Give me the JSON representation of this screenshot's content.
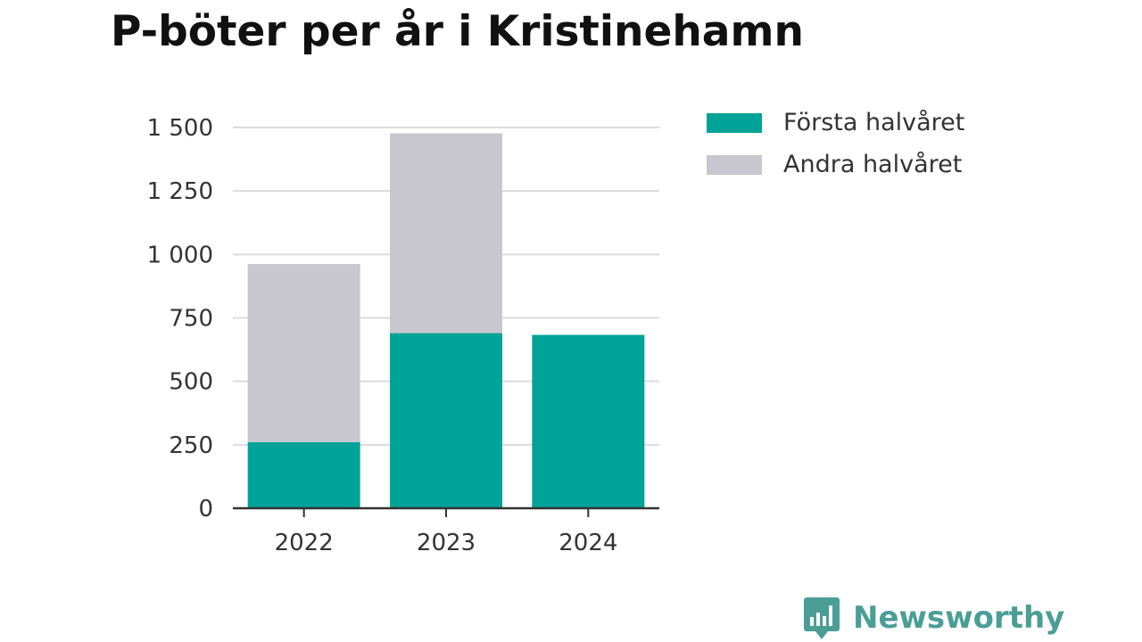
{
  "title": "P-böter per år i Kristinehamn",
  "brand": {
    "name": "Newsworthy",
    "icon": "bar-chart-speech-bubble-icon",
    "color": "#4a9e96"
  },
  "chart_data": {
    "type": "bar",
    "stacked": true,
    "title": "P-böter per år i Kristinehamn",
    "xlabel": "",
    "ylabel": "",
    "categories": [
      "2022",
      "2023",
      "2024"
    ],
    "series": [
      {
        "name": "Första halvåret",
        "color": "#00a398",
        "values": [
          260,
          690,
          683
        ]
      },
      {
        "name": "Andra halvåret",
        "color": "#c8c7cf",
        "values": [
          702,
          787,
          0
        ]
      }
    ],
    "ylim": [
      0,
      1500
    ],
    "yticks": [
      0,
      250,
      500,
      750,
      1000,
      1250,
      1500
    ],
    "ytick_labels": [
      "0",
      "250",
      "500",
      "750",
      "1 000",
      "1 250",
      "1 500"
    ],
    "grid": true,
    "legend_position": "top-right"
  }
}
